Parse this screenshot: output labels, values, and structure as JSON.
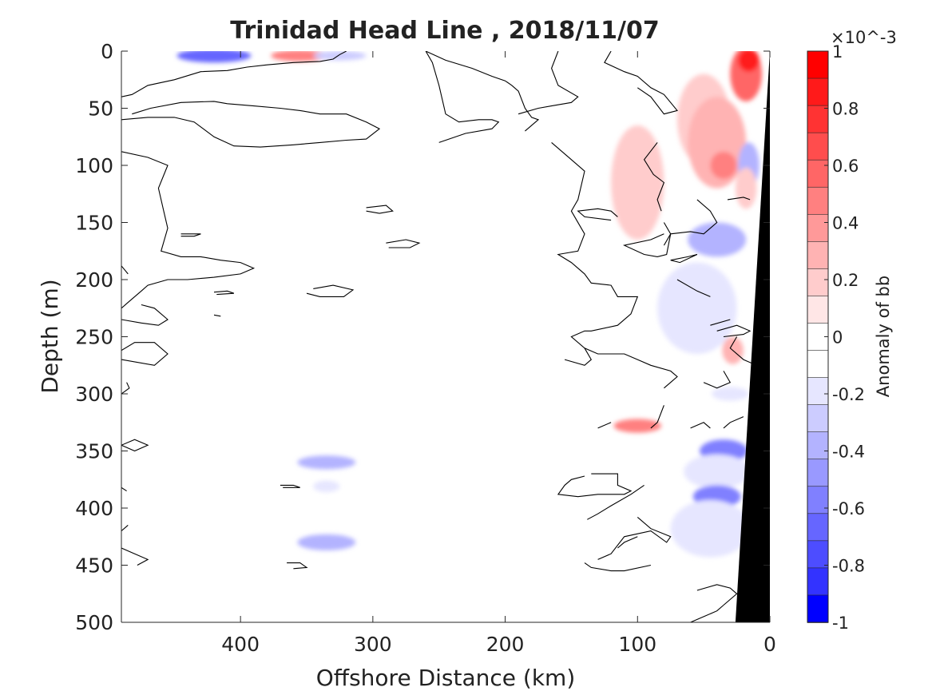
{
  "chart_data": {
    "type": "heatmap",
    "title": "Trinidad Head Line , 2018/11/07",
    "xlabel": "Offshore Distance (km)",
    "ylabel": "Depth (m)",
    "xlim": [
      490,
      0
    ],
    "ylim": [
      0,
      500
    ],
    "x_direction": "reversed",
    "y_direction": "reversed",
    "x_ticks": [
      400,
      300,
      200,
      100,
      0
    ],
    "y_ticks": [
      0,
      50,
      100,
      150,
      200,
      250,
      300,
      350,
      400,
      450,
      500
    ],
    "colorbar": {
      "label": "Anomaly of bb",
      "exponent": "×10^-3",
      "range": [
        -1,
        1
      ],
      "ticks": [
        1,
        0.8,
        0.6,
        0.4,
        0.2,
        0,
        -0.2,
        -0.4,
        -0.6,
        -0.8,
        -1
      ],
      "levels": [
        1.0,
        0.9,
        0.8,
        0.7,
        0.6,
        0.5,
        0.4,
        0.3,
        0.2,
        0.1,
        0.0,
        -0.1,
        -0.2,
        -0.3,
        -0.4,
        -0.5,
        -0.6,
        -0.7,
        -0.8,
        -0.9
      ],
      "colors": [
        "#ff0000",
        "#ff1a1a",
        "#ff3333",
        "#ff4d4d",
        "#ff6666",
        "#ff8080",
        "#ff9999",
        "#ffb3b3",
        "#ffcccc",
        "#ffe6e6",
        "#ffffff",
        "#ffffff",
        "#e6e6ff",
        "#ccccff",
        "#b3b3ff",
        "#9999ff",
        "#8080ff",
        "#6666ff",
        "#4d4dff",
        "#3333ff",
        "#0000ff"
      ]
    },
    "grid": false,
    "anomaly_patches": [
      {
        "x": 420,
        "y": 4,
        "rx": 28,
        "ry": 6,
        "value": -0.7
      },
      {
        "x": 355,
        "y": 4,
        "rx": 22,
        "ry": 5,
        "value": 0.5
      },
      {
        "x": 325,
        "y": 4,
        "rx": 20,
        "ry": 4,
        "value": -0.3
      },
      {
        "x": 335,
        "y": 360,
        "rx": 22,
        "ry": 6,
        "value": -0.4
      },
      {
        "x": 335,
        "y": 381,
        "rx": 10,
        "ry": 5,
        "value": -0.2
      },
      {
        "x": 335,
        "y": 430,
        "rx": 22,
        "ry": 7,
        "value": -0.4
      },
      {
        "x": 100,
        "y": 115,
        "rx": 20,
        "ry": 50,
        "value": 0.2
      },
      {
        "x": 100,
        "y": 328,
        "rx": 18,
        "ry": 6,
        "value": 0.5
      },
      {
        "x": 50,
        "y": 60,
        "rx": 20,
        "ry": 40,
        "value": 0.2
      },
      {
        "x": 40,
        "y": 80,
        "rx": 22,
        "ry": 40,
        "value": 0.3
      },
      {
        "x": 35,
        "y": 100,
        "rx": 10,
        "ry": 12,
        "value": 0.5
      },
      {
        "x": 18,
        "y": 20,
        "rx": 12,
        "ry": 24,
        "value": 0.6
      },
      {
        "x": 16,
        "y": 8,
        "rx": 8,
        "ry": 10,
        "value": 0.9
      },
      {
        "x": 16,
        "y": 100,
        "rx": 8,
        "ry": 20,
        "value": -0.4
      },
      {
        "x": 40,
        "y": 165,
        "rx": 22,
        "ry": 15,
        "value": -0.4
      },
      {
        "x": 55,
        "y": 225,
        "rx": 30,
        "ry": 40,
        "value": -0.2
      },
      {
        "x": 30,
        "y": 300,
        "rx": 14,
        "ry": 6,
        "value": -0.2
      },
      {
        "x": 35,
        "y": 350,
        "rx": 18,
        "ry": 10,
        "value": -0.6
      },
      {
        "x": 40,
        "y": 368,
        "rx": 25,
        "ry": 15,
        "value": -0.2
      },
      {
        "x": 40,
        "y": 390,
        "rx": 18,
        "ry": 10,
        "value": -0.6
      },
      {
        "x": 45,
        "y": 418,
        "rx": 30,
        "ry": 25,
        "value": -0.2
      },
      {
        "x": 28,
        "y": 262,
        "rx": 8,
        "ry": 12,
        "value": 0.3
      },
      {
        "x": 18,
        "y": 120,
        "rx": 8,
        "ry": 18,
        "value": 0.2
      }
    ],
    "bathymetry": {
      "surface_km": 0,
      "bottom_km": 26,
      "bottom_depth_m": 500,
      "depth_at_surface_m": 0
    },
    "zero_contours": [
      [
        [
          490,
          60
        ],
        [
          470,
          58
        ],
        [
          450,
          58
        ],
        [
          435,
          62
        ],
        [
          420,
          75
        ],
        [
          405,
          83
        ],
        [
          385,
          84
        ],
        [
          360,
          82
        ],
        [
          340,
          80
        ],
        [
          320,
          78
        ],
        [
          305,
          77
        ],
        [
          295,
          68
        ],
        [
          305,
          62
        ],
        [
          320,
          55
        ],
        [
          340,
          55
        ],
        [
          355,
          52
        ],
        [
          370,
          50
        ],
        [
          390,
          48
        ],
        [
          410,
          46
        ],
        [
          420,
          44
        ],
        [
          445,
          45
        ],
        [
          468,
          50
        ],
        [
          482,
          55
        ]
      ],
      [
        [
          490,
          40
        ],
        [
          482,
          38
        ],
        [
          470,
          30
        ],
        [
          450,
          25
        ],
        [
          430,
          18
        ],
        [
          410,
          17
        ],
        [
          395,
          14
        ],
        [
          380,
          12
        ],
        [
          360,
          10
        ],
        [
          340,
          9
        ],
        [
          330,
          7
        ],
        [
          325,
          3
        ],
        [
          320,
          0
        ]
      ],
      [
        [
          490,
          88
        ],
        [
          470,
          93
        ],
        [
          455,
          100
        ],
        [
          462,
          120
        ],
        [
          458,
          140
        ],
        [
          455,
          155
        ],
        [
          460,
          175
        ],
        [
          445,
          180
        ],
        [
          430,
          180
        ],
        [
          415,
          183
        ],
        [
          400,
          185
        ],
        [
          390,
          190
        ],
        [
          400,
          195
        ],
        [
          420,
          198
        ],
        [
          440,
          200
        ],
        [
          455,
          200
        ],
        [
          470,
          205
        ],
        [
          475,
          210
        ],
        [
          485,
          220
        ],
        [
          490,
          225
        ]
      ],
      [
        [
          490,
          235
        ],
        [
          475,
          238
        ],
        [
          462,
          240
        ],
        [
          455,
          235
        ],
        [
          465,
          225
        ],
        [
          475,
          222
        ]
      ],
      [
        [
          490,
          270
        ],
        [
          465,
          275
        ],
        [
          455,
          265
        ],
        [
          465,
          255
        ],
        [
          480,
          255
        ],
        [
          490,
          262
        ]
      ],
      [
        [
          490,
          300
        ],
        [
          484,
          295
        ],
        [
          486,
          290
        ]
      ],
      [
        [
          490,
          345
        ],
        [
          480,
          340
        ],
        [
          470,
          345
        ],
        [
          480,
          350
        ],
        [
          490,
          345
        ]
      ],
      [
        [
          445,
          160
        ],
        [
          430,
          160
        ],
        [
          435,
          162
        ],
        [
          445,
          162
        ]
      ],
      [
        [
          420,
          211
        ],
        [
          410,
          210
        ],
        [
          405,
          212
        ],
        [
          418,
          213
        ]
      ],
      [
        [
          420,
          231
        ],
        [
          415,
          232
        ]
      ],
      [
        [
          345,
          208
        ],
        [
          330,
          205
        ],
        [
          315,
          209
        ],
        [
          322,
          215
        ],
        [
          340,
          215
        ],
        [
          350,
          212
        ]
      ],
      [
        [
          305,
          137
        ],
        [
          290,
          135
        ],
        [
          285,
          140
        ],
        [
          295,
          142
        ],
        [
          305,
          140
        ]
      ],
      [
        [
          290,
          168
        ],
        [
          275,
          165
        ],
        [
          265,
          168
        ],
        [
          272,
          172
        ],
        [
          288,
          172
        ]
      ],
      [
        [
          370,
          380
        ],
        [
          360,
          380
        ],
        [
          355,
          382
        ],
        [
          368,
          382
        ]
      ],
      [
        [
          365,
          448
        ],
        [
          355,
          448
        ],
        [
          350,
          452
        ],
        [
          360,
          453
        ]
      ],
      [
        [
          490,
          435
        ],
        [
          480,
          440
        ],
        [
          470,
          445
        ],
        [
          478,
          450
        ]
      ],
      [
        [
          490,
          188
        ],
        [
          485,
          195
        ]
      ],
      [
        [
          490,
          420
        ],
        [
          485,
          415
        ]
      ],
      [
        [
          490,
          382
        ],
        [
          486,
          385
        ]
      ],
      [
        [
          260,
          0
        ],
        [
          245,
          8
        ],
        [
          225,
          15
        ],
        [
          210,
          22
        ],
        [
          200,
          26
        ],
        [
          195,
          30
        ],
        [
          190,
          35
        ],
        [
          185,
          50
        ],
        [
          180,
          58
        ],
        [
          175,
          60
        ],
        [
          180,
          65
        ],
        [
          185,
          70
        ]
      ],
      [
        [
          260,
          0
        ],
        [
          255,
          10
        ],
        [
          250,
          30
        ],
        [
          245,
          55
        ],
        [
          235,
          62
        ],
        [
          220,
          60
        ],
        [
          210,
          60
        ],
        [
          205,
          62
        ],
        [
          210,
          68
        ],
        [
          230,
          72
        ],
        [
          250,
          80
        ]
      ],
      [
        [
          160,
          0
        ],
        [
          165,
          15
        ],
        [
          160,
          30
        ],
        [
          145,
          40
        ],
        [
          150,
          45
        ],
        [
          165,
          48
        ],
        [
          175,
          50
        ],
        [
          190,
          55
        ]
      ],
      [
        [
          120,
          0
        ],
        [
          125,
          10
        ],
        [
          110,
          18
        ],
        [
          100,
          22
        ],
        [
          90,
          32
        ],
        [
          80,
          38
        ],
        [
          75,
          45
        ],
        [
          70,
          52
        ],
        [
          80,
          55
        ],
        [
          90,
          40
        ],
        [
          100,
          32
        ]
      ],
      [
        [
          165,
          80
        ],
        [
          150,
          95
        ],
        [
          140,
          105
        ],
        [
          145,
          130
        ],
        [
          150,
          140
        ],
        [
          140,
          160
        ],
        [
          145,
          175
        ],
        [
          160,
          178
        ],
        [
          150,
          185
        ],
        [
          140,
          195
        ],
        [
          135,
          203
        ],
        [
          120,
          205
        ],
        [
          115,
          215
        ],
        [
          100,
          215
        ],
        [
          105,
          230
        ],
        [
          115,
          240
        ],
        [
          135,
          245
        ],
        [
          140,
          245
        ],
        [
          150,
          250
        ],
        [
          140,
          260
        ],
        [
          130,
          265
        ],
        [
          110,
          265
        ],
        [
          100,
          270
        ],
        [
          90,
          275
        ],
        [
          75,
          280
        ],
        [
          70,
          285
        ],
        [
          75,
          290
        ],
        [
          80,
          295
        ]
      ],
      [
        [
          120,
          148
        ],
        [
          140,
          145
        ],
        [
          145,
          140
        ],
        [
          130,
          138
        ],
        [
          120,
          140
        ],
        [
          115,
          145
        ]
      ],
      [
        [
          80,
          150
        ],
        [
          75,
          160
        ],
        [
          78,
          178
        ],
        [
          85,
          180
        ],
        [
          95,
          178
        ],
        [
          110,
          170
        ],
        [
          90,
          165
        ],
        [
          80,
          160
        ]
      ],
      [
        [
          140,
          260
        ],
        [
          135,
          270
        ],
        [
          140,
          275
        ],
        [
          155,
          270
        ]
      ],
      [
        [
          135,
          370
        ],
        [
          115,
          370
        ],
        [
          115,
          380
        ],
        [
          105,
          385
        ],
        [
          110,
          388
        ],
        [
          130,
          388
        ],
        [
          145,
          390
        ],
        [
          160,
          388
        ],
        [
          155,
          380
        ],
        [
          150,
          375
        ],
        [
          140,
          372
        ]
      ],
      [
        [
          95,
          380
        ],
        [
          105,
          388
        ],
        [
          120,
          398
        ],
        [
          130,
          405
        ],
        [
          138,
          410
        ]
      ],
      [
        [
          100,
          408
        ],
        [
          90,
          418
        ],
        [
          75,
          425
        ],
        [
          78,
          430
        ],
        [
          90,
          420
        ],
        [
          110,
          425
        ],
        [
          120,
          440
        ],
        [
          130,
          445
        ]
      ],
      [
        [
          100,
          425
        ],
        [
          110,
          430
        ],
        [
          115,
          435
        ]
      ],
      [
        [
          90,
          450
        ],
        [
          110,
          455
        ],
        [
          120,
          455
        ],
        [
          135,
          452
        ],
        [
          140,
          448
        ]
      ],
      [
        [
          60,
          500
        ],
        [
          50,
          495
        ],
        [
          40,
          490
        ],
        [
          35,
          485
        ]
      ],
      [
        [
          35,
          485
        ],
        [
          25,
          475
        ],
        [
          30,
          470
        ],
        [
          40,
          467
        ],
        [
          55,
          472
        ]
      ],
      [
        [
          120,
          325
        ],
        [
          130,
          330
        ]
      ],
      [
        [
          80,
          310
        ],
        [
          85,
          325
        ],
        [
          90,
          330
        ]
      ],
      [
        [
          45,
          240
        ],
        [
          30,
          235
        ]
      ],
      [
        [
          35,
          250
        ],
        [
          20,
          248
        ],
        [
          15,
          245
        ],
        [
          25,
          240
        ],
        [
          40,
          245
        ]
      ],
      [
        [
          70,
          200
        ],
        [
          55,
          210
        ],
        [
          45,
          215
        ]
      ],
      [
        [
          55,
          178
        ],
        [
          68,
          185
        ],
        [
          75,
          183
        ],
        [
          62,
          180
        ],
        [
          55,
          178
        ]
      ],
      [
        [
          55,
          130
        ],
        [
          45,
          140
        ],
        [
          40,
          150
        ],
        [
          50,
          160
        ],
        [
          60,
          158
        ],
        [
          75,
          160
        ],
        [
          80,
          170
        ]
      ],
      [
        [
          32,
          130
        ],
        [
          20,
          128
        ],
        [
          15,
          130
        ]
      ],
      [
        [
          82,
          140
        ],
        [
          85,
          130
        ],
        [
          80,
          115
        ],
        [
          88,
          108
        ],
        [
          95,
          95
        ],
        [
          85,
          80
        ]
      ],
      [
        [
          25,
          250
        ],
        [
          30,
          260
        ],
        [
          20,
          270
        ],
        [
          10,
          275
        ],
        [
          5,
          280
        ]
      ],
      [
        [
          35,
          280
        ],
        [
          30,
          290
        ],
        [
          40,
          295
        ],
        [
          50,
          290
        ]
      ],
      [
        [
          35,
          330
        ],
        [
          30,
          325
        ],
        [
          20,
          320
        ]
      ],
      [
        [
          45,
          330
        ],
        [
          50,
          325
        ],
        [
          60,
          330
        ]
      ]
    ]
  }
}
